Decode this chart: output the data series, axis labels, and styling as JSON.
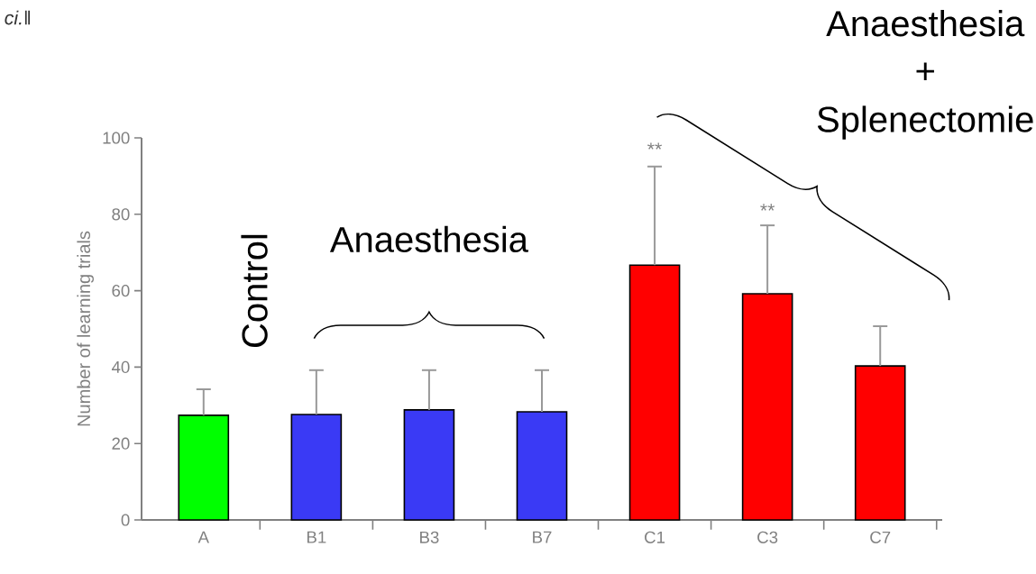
{
  "chart_data": {
    "type": "bar",
    "ylabel": "Number of learning trials",
    "categories": [
      "A",
      "B1",
      "B3",
      "B7",
      "C1",
      "C3",
      "C7"
    ],
    "values": [
      27.4,
      27.6,
      28.8,
      28.3,
      66.7,
      59.2,
      40.3
    ],
    "colors": [
      "#00ff00",
      "#3a3af5",
      "#3a3af5",
      "#3a3af5",
      "#ff0000",
      "#ff0000",
      "#ff0000"
    ],
    "errors": [
      [
        27.4,
        34.2
      ],
      [
        27.6,
        39.2
      ],
      [
        28.8,
        39.2
      ],
      [
        28.3,
        39.2
      ],
      [
        66.7,
        92.5
      ],
      [
        59.2,
        77.1
      ],
      [
        40.3,
        50.7
      ]
    ],
    "ylim": [
      0,
      100
    ],
    "yticks": [
      0,
      20,
      40,
      60,
      80,
      100
    ],
    "grid": false,
    "annotations": [
      "*ci.*‖",
      "Control",
      "Anaesthesia",
      "Anaesthesia",
      "+",
      "Splenectomie",
      "**",
      "**"
    ]
  }
}
